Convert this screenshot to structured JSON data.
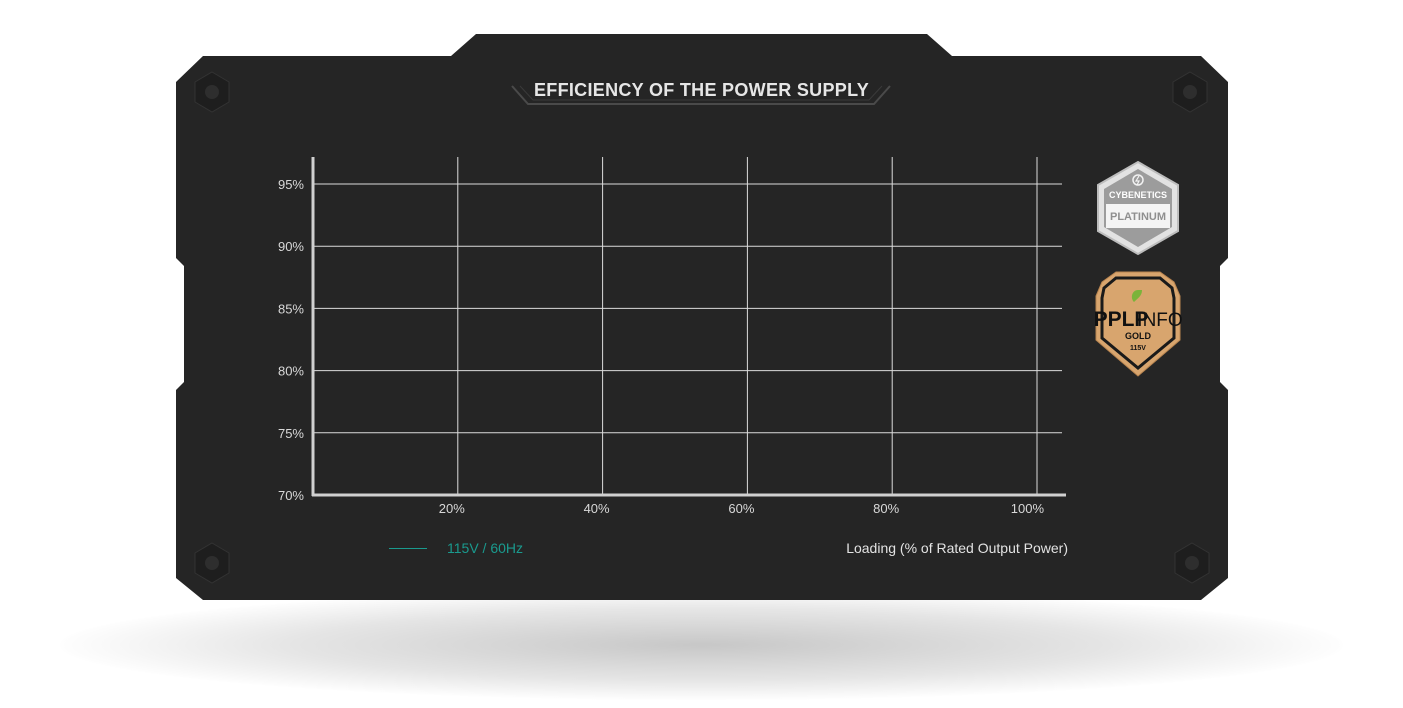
{
  "title": "EFFICIENCY OF THE POWER SUPPLY",
  "colors": {
    "panel": "#252525",
    "grid": "#dcdcdc",
    "series": "#1a9a8e",
    "gold_badge": "#d8a56e"
  },
  "badges": {
    "cybenetics": {
      "brand": "CYBENETICS",
      "level": "PLATINUM"
    },
    "pplp": {
      "brand_left": "PPLP",
      "brand_right": "INFO",
      "level": "GOLD",
      "voltage": "115V"
    }
  },
  "chart_data": {
    "type": "line",
    "title": "EFFICIENCY OF THE POWER SUPPLY",
    "xlabel": "Loading (% of Rated Output Power)",
    "ylabel": "",
    "x_ticks": [
      "20%",
      "40%",
      "60%",
      "80%",
      "100%"
    ],
    "y_ticks": [
      "70%",
      "75%",
      "80%",
      "85%",
      "90%",
      "95%"
    ],
    "xlim": [
      0,
      100
    ],
    "ylim": [
      70,
      95
    ],
    "grid": true,
    "legend_position": "bottom-left",
    "series": [
      {
        "name": "115V / 60Hz",
        "color": "#1a9a8e",
        "x": [],
        "y": []
      }
    ]
  }
}
